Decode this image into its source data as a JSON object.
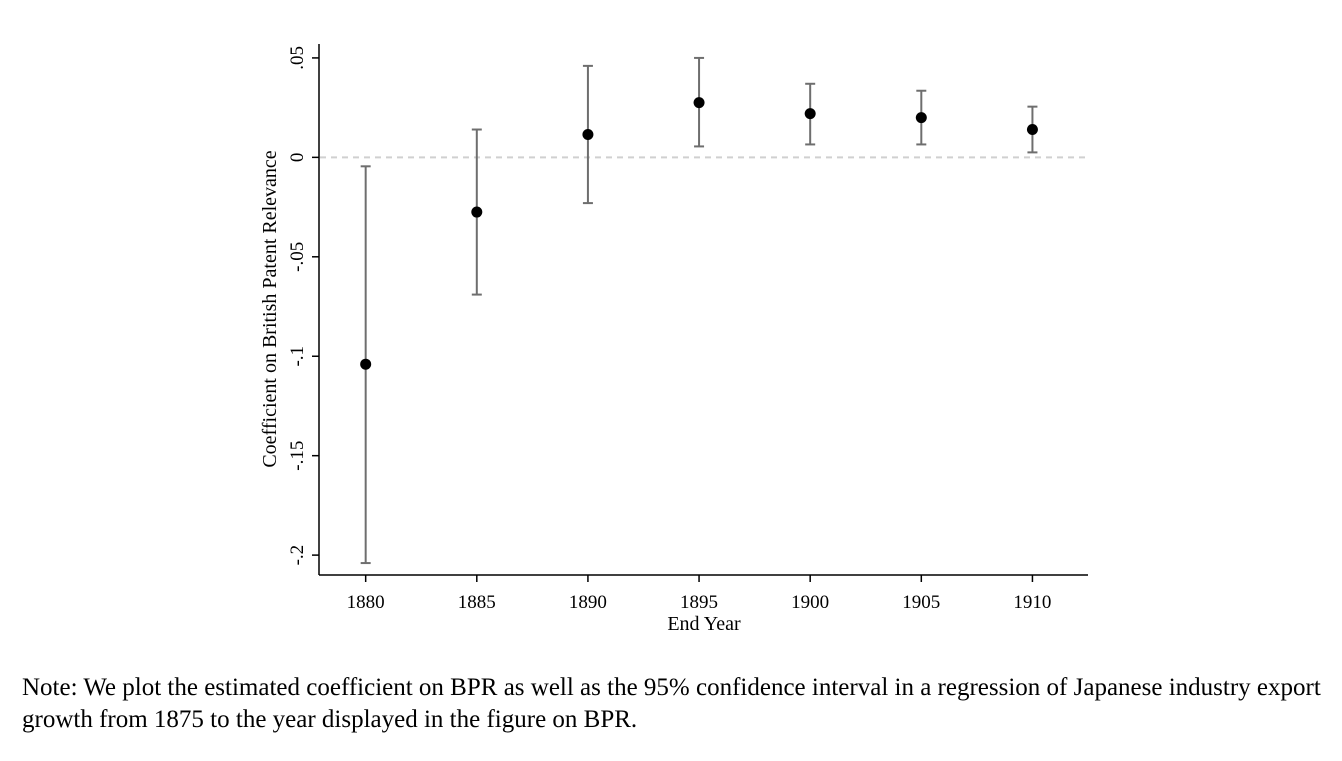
{
  "chart_data": {
    "type": "scatter",
    "title": "",
    "xlabel": "End Year",
    "ylabel": "Coefficient on British Patent Relevance",
    "x": [
      1880,
      1885,
      1890,
      1895,
      1900,
      1905,
      1910
    ],
    "y": [
      -0.104,
      -0.0275,
      0.0115,
      0.0275,
      0.022,
      0.02,
      0.014
    ],
    "ci_lower": [
      -0.204,
      -0.069,
      -0.023,
      0.0055,
      0.0065,
      0.0065,
      0.0025
    ],
    "ci_upper": [
      -0.0045,
      0.014,
      0.046,
      0.05,
      0.037,
      0.0335,
      0.0255
    ],
    "xlim": [
      1877.9,
      1912.5
    ],
    "ylim": [
      -0.21,
      0.057
    ],
    "xticks": [
      {
        "value": 1880,
        "label": "1880"
      },
      {
        "value": 1885,
        "label": "1885"
      },
      {
        "value": 1890,
        "label": "1890"
      },
      {
        "value": 1895,
        "label": "1895"
      },
      {
        "value": 1900,
        "label": "1900"
      },
      {
        "value": 1905,
        "label": "1905"
      },
      {
        "value": 1910,
        "label": "1910"
      }
    ],
    "yticks": [
      {
        "value": 0.05,
        "label": ".05"
      },
      {
        "value": 0,
        "label": "0"
      },
      {
        "value": -0.05,
        "label": "-.05"
      },
      {
        "value": -0.1,
        "label": "-.1"
      },
      {
        "value": -0.15,
        "label": "-.15"
      },
      {
        "value": -0.2,
        "label": "-.2"
      }
    ],
    "reference_line": {
      "y": 0,
      "style": "dashed"
    },
    "grid": false,
    "colors": {
      "point": "#000000",
      "ci": "#6e6e6e",
      "reference": "#d0d0d0",
      "axis": "#000000"
    }
  },
  "note": "Note:  We plot the estimated coefficient on BPR as well as the 95% confidence interval in a regression of Japanese industry export growth from 1875 to the year displayed in the figure on BPR."
}
